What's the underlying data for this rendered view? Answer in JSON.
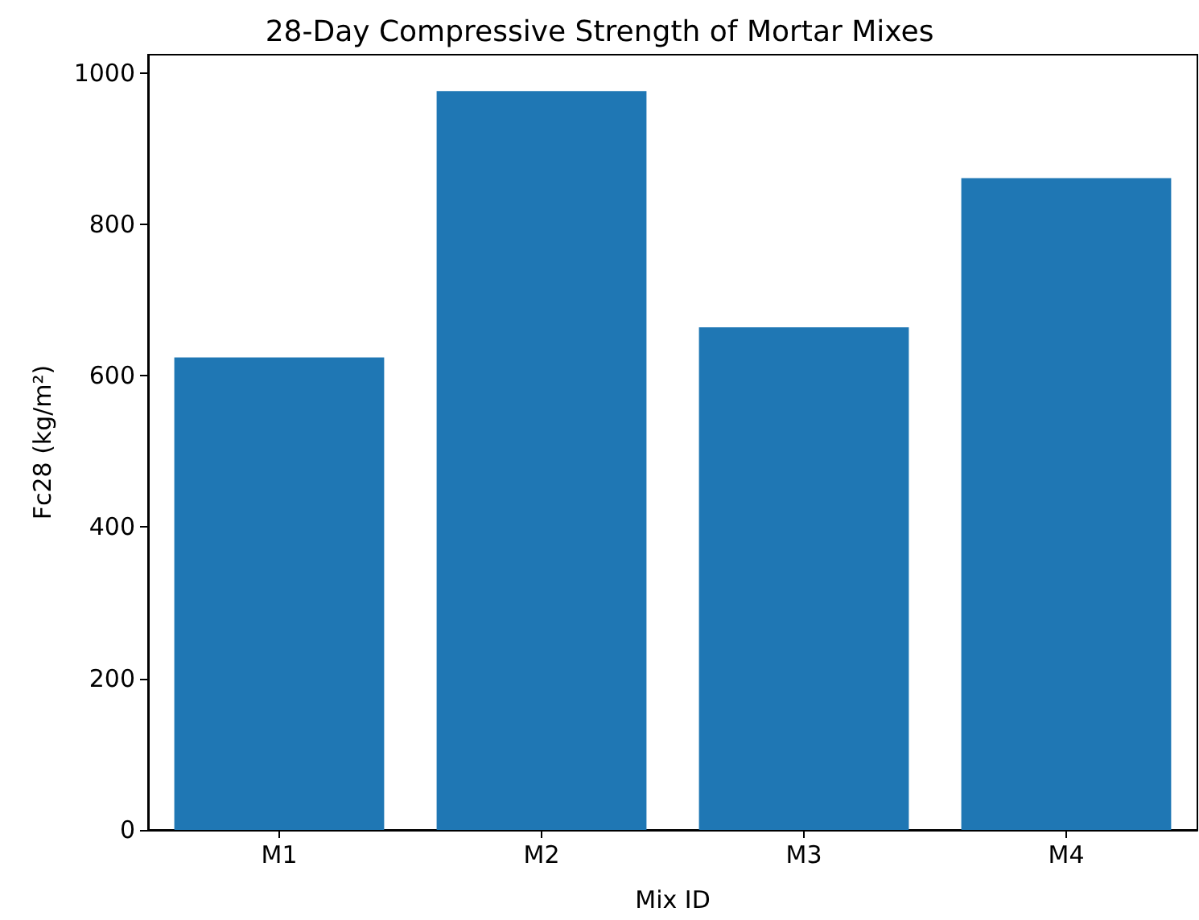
{
  "chart_data": {
    "type": "bar",
    "title": "28-Day Compressive Strength of Mortar Mixes",
    "xlabel": "Mix ID",
    "ylabel": "Fc28 (kg/m²)",
    "categories": [
      "M1",
      "M2",
      "M3",
      "M4"
    ],
    "values": [
      624,
      976,
      664,
      861
    ],
    "color": "#1f77b4",
    "ylim": [
      0,
      1024
    ],
    "yticks": [
      0,
      200,
      400,
      600,
      800,
      1000
    ],
    "grid": false
  }
}
